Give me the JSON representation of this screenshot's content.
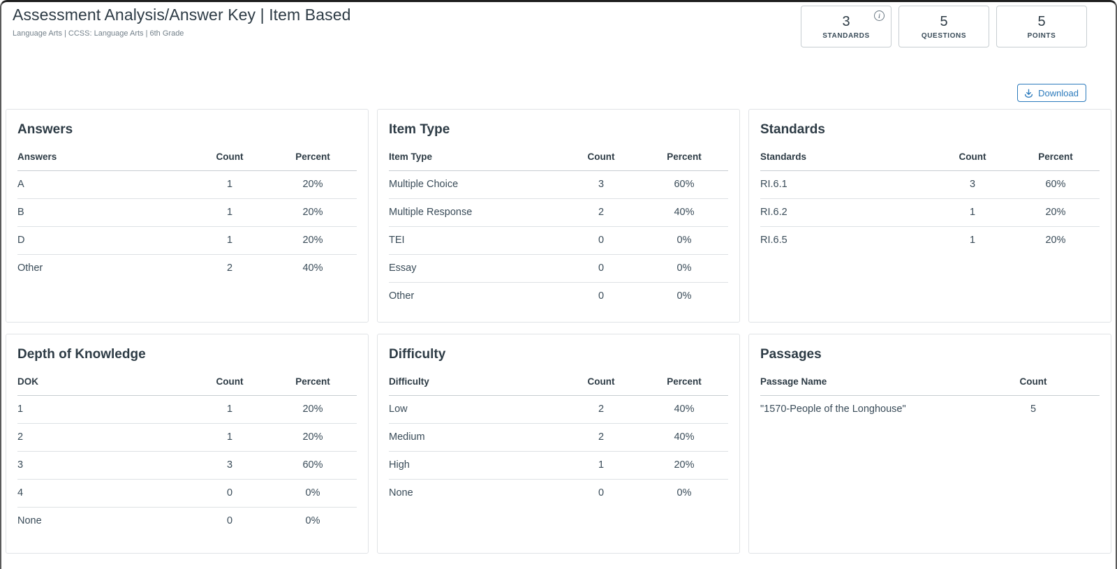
{
  "page": {
    "title": "Assessment Analysis/Answer Key | Item Based",
    "breadcrumb": "Language Arts  |  CCSS: Language Arts  |  6th Grade"
  },
  "stats": [
    {
      "value": "3",
      "label": "STANDARDS",
      "info_icon": "i"
    },
    {
      "value": "5",
      "label": "QUESTIONS"
    },
    {
      "value": "5",
      "label": "POINTS"
    }
  ],
  "toolbar": {
    "download_label": "Download"
  },
  "colors": {
    "accent_blue": "#2B7ABC",
    "text_dark": "#2D3B45",
    "text_gray": "#73808A",
    "border_gray": "#C7CDD1"
  },
  "cards": [
    {
      "title": "Answers",
      "columns": [
        "Answers",
        "Count",
        "Percent"
      ],
      "rows": [
        [
          "A",
          "1",
          "20%"
        ],
        [
          "B",
          "1",
          "20%"
        ],
        [
          "D",
          "1",
          "20%"
        ],
        [
          "Other",
          "2",
          "40%"
        ]
      ]
    },
    {
      "title": "Item Type",
      "columns": [
        "Item Type",
        "Count",
        "Percent"
      ],
      "rows": [
        [
          "Multiple Choice",
          "3",
          "60%"
        ],
        [
          "Multiple Response",
          "2",
          "40%"
        ],
        [
          "TEI",
          "0",
          "0%"
        ],
        [
          "Essay",
          "0",
          "0%"
        ],
        [
          "Other",
          "0",
          "0%"
        ]
      ]
    },
    {
      "title": "Standards",
      "columns": [
        "Standards",
        "Count",
        "Percent"
      ],
      "rows": [
        [
          "RI.6.1",
          "3",
          "60%"
        ],
        [
          "RI.6.2",
          "1",
          "20%"
        ],
        [
          "RI.6.5",
          "1",
          "20%"
        ]
      ]
    },
    {
      "title": "Depth of Knowledge",
      "columns": [
        "DOK",
        "Count",
        "Percent"
      ],
      "rows": [
        [
          "1",
          "1",
          "20%"
        ],
        [
          "2",
          "1",
          "20%"
        ],
        [
          "3",
          "3",
          "60%"
        ],
        [
          "4",
          "0",
          "0%"
        ],
        [
          "None",
          "0",
          "0%"
        ]
      ]
    },
    {
      "title": "Difficulty",
      "columns": [
        "Difficulty",
        "Count",
        "Percent"
      ],
      "rows": [
        [
          "Low",
          "2",
          "40%"
        ],
        [
          "Medium",
          "2",
          "40%"
        ],
        [
          "High",
          "1",
          "20%"
        ],
        [
          "None",
          "0",
          "0%"
        ]
      ]
    },
    {
      "title": "Passages",
      "columns": [
        "Passage Name",
        "Count"
      ],
      "rows": [
        [
          "\"1570-People of the Longhouse\"",
          "5"
        ]
      ]
    }
  ]
}
